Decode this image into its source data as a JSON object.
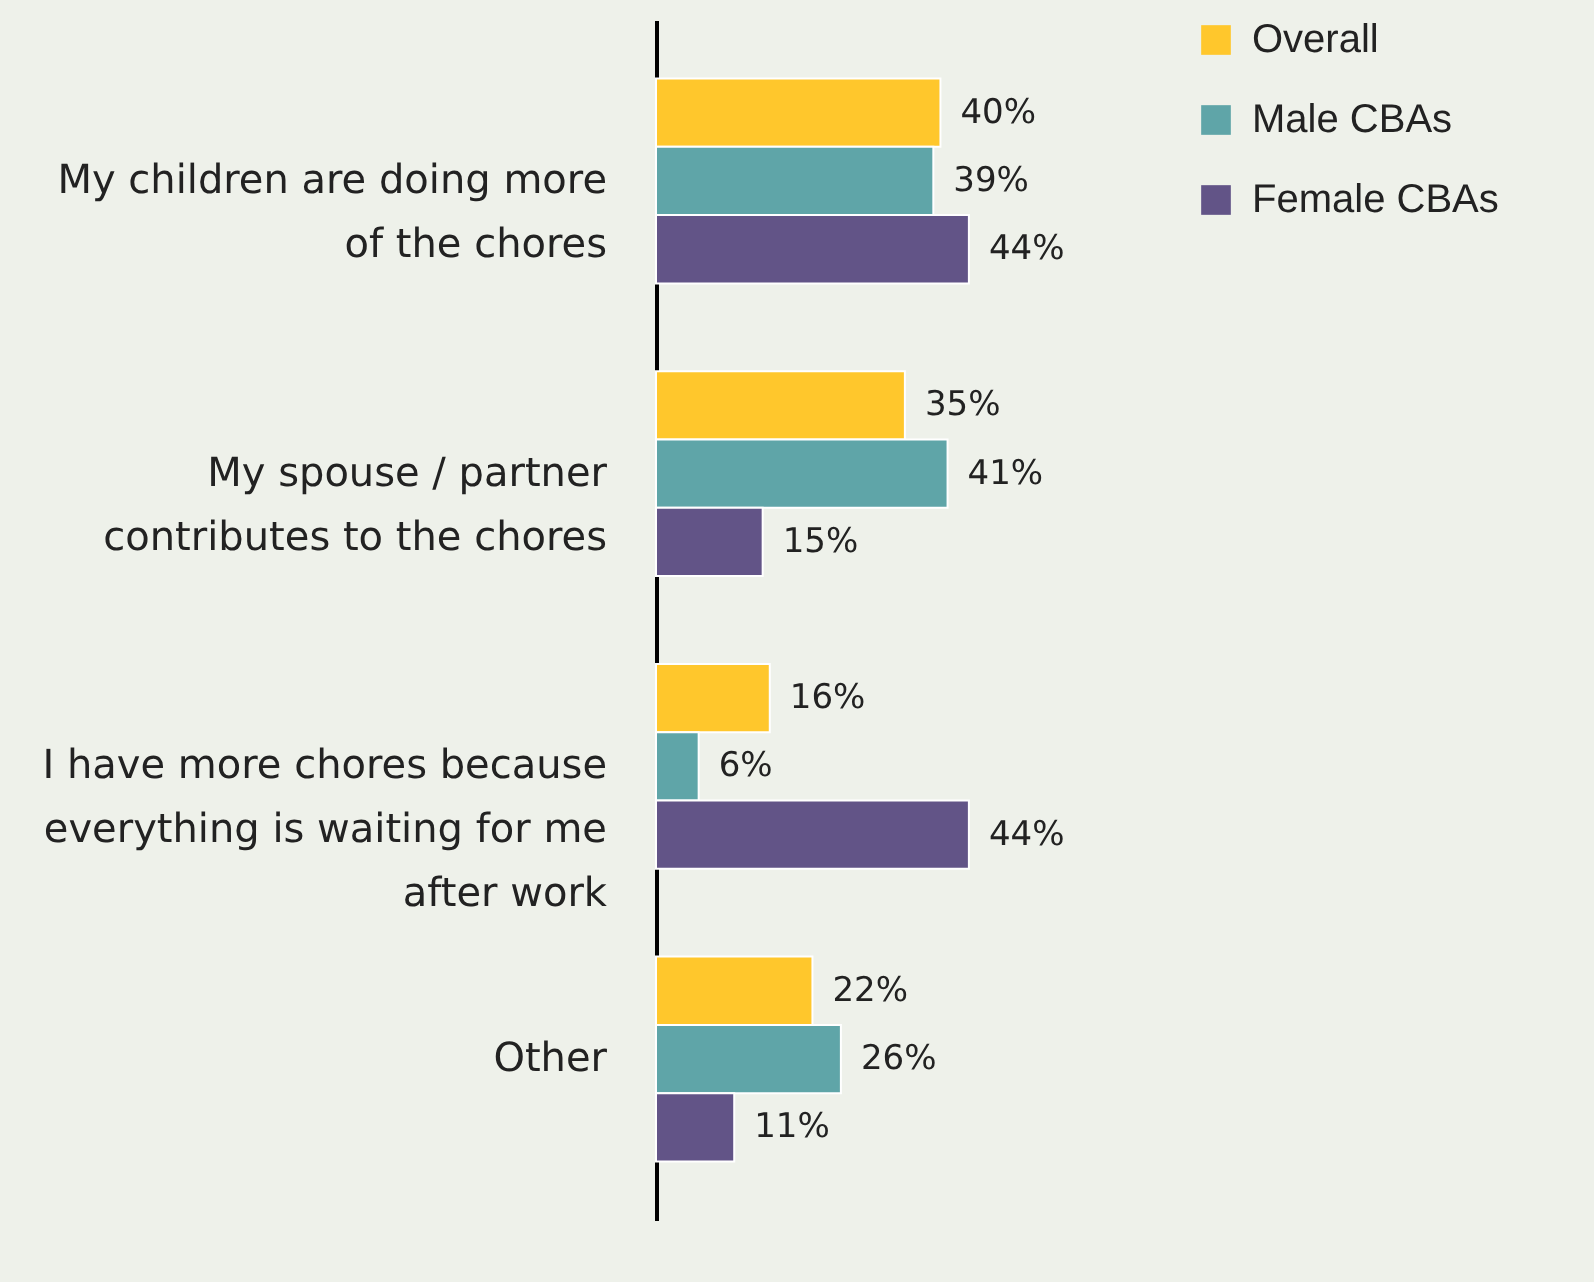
{
  "chart_data": {
    "type": "bar",
    "orientation": "horizontal",
    "categories": [
      "My children are doing more of the chores",
      "My spouse / partner contributes to the chores",
      "I have more chores because everything is waiting for me after work",
      "Other"
    ],
    "series": [
      {
        "name": "Overall",
        "color": "#ffc72c",
        "values": [
          40,
          35,
          16,
          22
        ],
        "value_labels": [
          "40%",
          "35%",
          "16%",
          "22%"
        ]
      },
      {
        "name": "Male CBAs",
        "color": "#5fa5a8",
        "values": [
          39,
          41,
          6,
          26
        ],
        "value_labels": [
          "39%",
          "41%",
          "6%",
          "26%"
        ]
      },
      {
        "name": "Female CBAs",
        "color": "#625487",
        "values": [
          44,
          15,
          44,
          11
        ],
        "value_labels": [
          "44%",
          "15%",
          "44%",
          "11%"
        ]
      }
    ],
    "legend": "top right"
  }
}
